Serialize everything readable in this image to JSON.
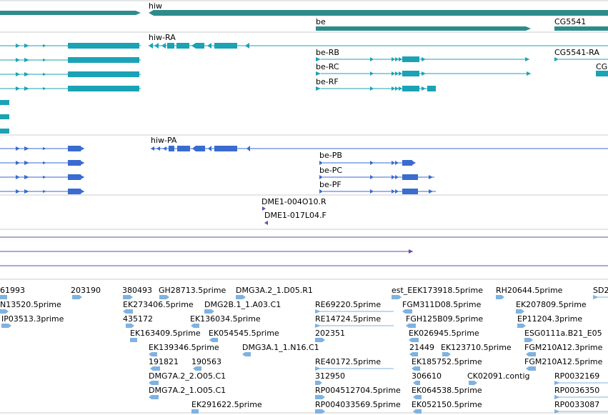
{
  "colors": {
    "gene": "#2e8b8b",
    "flybase_transcript": "#1aa3b5",
    "refseq_transcript": "#3a6bd0",
    "probe": "#6a4aa8",
    "est": "#7fb2e0",
    "track_divider": "#cccccc"
  },
  "tracks": {
    "genes": [
      {
        "label": "hiw",
        "strand": "minus"
      },
      {
        "label": "be",
        "strand": "plus"
      },
      {
        "label": "CG5541",
        "strand": "unknown"
      }
    ],
    "flybase_transcripts": [
      {
        "label": "hiw-RA",
        "strand": "minus"
      },
      {
        "label": "be-RB",
        "strand": "plus"
      },
      {
        "label": "be-RC",
        "strand": "plus"
      },
      {
        "label": "be-RF",
        "strand": "plus"
      },
      {
        "label": "CG5541-RA",
        "strand": "plus"
      },
      {
        "label": "CG",
        "strand": "unknown"
      }
    ],
    "refseq_transcripts": [
      {
        "label": "hiw-PA",
        "strand": "minus"
      },
      {
        "label": "be-PB",
        "strand": "plus"
      },
      {
        "label": "be-PC",
        "strand": "plus"
      },
      {
        "label": "be-PF",
        "strand": "plus"
      }
    ],
    "probes": [
      {
        "label": "DME1-004O10.R",
        "strand": "plus"
      },
      {
        "label": "DME1-017L04.F",
        "strand": "minus"
      }
    ],
    "est_labels": [
      "61993",
      "N13520.5prime",
      "IP03513.3prime",
      "203190",
      "380493",
      "EK273406.5prime",
      "435172",
      "EK163409.5prime",
      "EK139346.5prime",
      "191821",
      "DMG7A.2_2.O05.C1",
      "DMG7A.2_1.O05.C1",
      "GH28713.5prime",
      "DMG2B.1_1.A03.C1",
      "EK136034.5prime",
      "EK054545.5prime",
      "190563",
      "EK291622.5prime",
      "DMG3A.2_1.D05.R1",
      "DMG3A.1_1.N16.C1",
      "RE69220.5prime",
      "RE14724.5prime",
      "202351",
      "RE40172.5prime",
      "312950",
      "RP004512704.5prime",
      "RP004033569.5prime",
      "est_EEK173918.5prime",
      "FGM311D08.5prime",
      "FGH125B09.5prime",
      "EK026945.5prime",
      "21449",
      "EK123710.5prime",
      "EK185752.5prime",
      "306610",
      "EK064538.5prime",
      "EK052150.5prime",
      "CK02091.contig",
      "RH20644.5prime",
      "EK207809.5prime",
      "EP11204.3prime",
      "ESG0111a.B21_E05",
      "FGM210A12.3prime",
      "FGM210A12.5prime",
      "SD2",
      "RP0032169",
      "RP0036350",
      "RP0033087"
    ]
  }
}
